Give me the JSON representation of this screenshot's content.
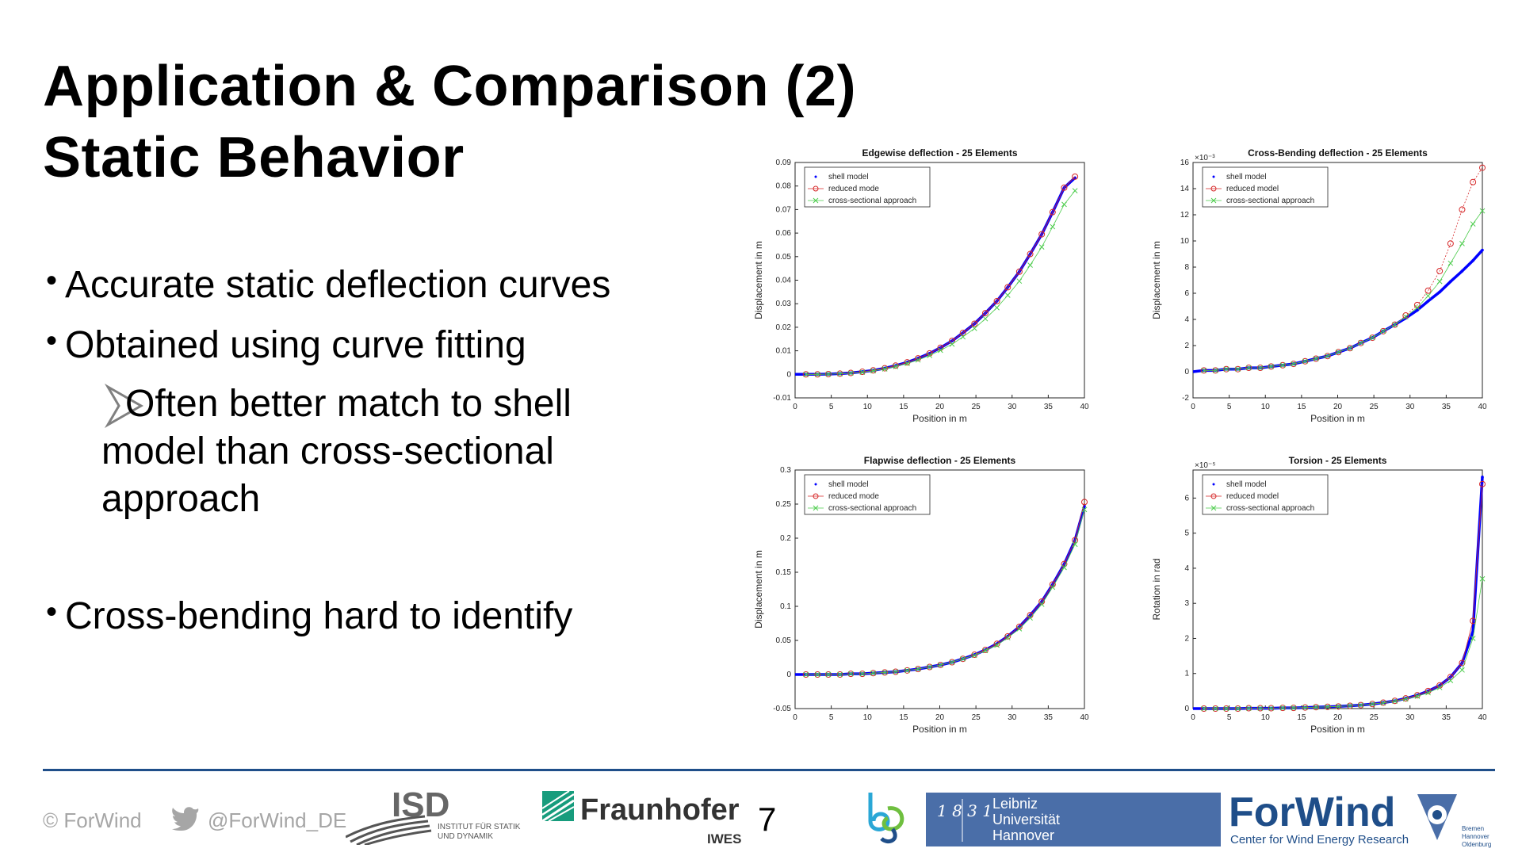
{
  "slide": {
    "title_line1": "Application & Comparison (2)",
    "title_line2": "Static Behavior",
    "bullet1": "Accurate static deflection curves",
    "bullet2": "Obtained using curve fitting",
    "sub_line1": "Often better match to shell",
    "sub_line2": "model than cross-sectional",
    "sub_line3": "approach",
    "bullet3": "Cross-bending hard to identify",
    "page_number": "7"
  },
  "footer": {
    "copyright": "© ForWind",
    "twitter": "@ForWind_DE",
    "isd_name": "ISD",
    "isd_sub1": "INSTITUT FÜR STATIK",
    "isd_sub2": "UND DYNAMIK",
    "fraunhofer": "Fraunhofer",
    "iwes": "IWES",
    "luh_digits": "1 8 3 1 2 0 0 4",
    "luh_line1": "Leibniz",
    "luh_line2": "Universität",
    "luh_line3": "Hannover",
    "forwind_name": "ForWind",
    "forwind_tagline": "Center for Wind Energy Research",
    "forwind_cities": [
      "Bremen",
      "Hannover",
      "Oldenburg"
    ]
  },
  "colors": {
    "shell": "#0000ff",
    "reduced": "#d62728",
    "cross": "#4dcc4d",
    "footer_line": "#1f4e89",
    "luh_blue": "#4a6ea8",
    "forwind_blue": "#1f4e89"
  },
  "legend": [
    "shell model",
    "reduced mode",
    "cross-sectional approach"
  ],
  "chart_data": [
    {
      "type": "line",
      "title": "Edgewise deflection - 25 Elements",
      "xlabel": "Position in m",
      "ylabel": "Displacement in m",
      "xlim": [
        0,
        40
      ],
      "ylim": [
        -0.01,
        0.09
      ],
      "xticks": [
        0,
        5,
        10,
        15,
        20,
        25,
        30,
        35,
        40
      ],
      "yticks": [
        -0.01,
        0,
        0.01,
        0.02,
        0.03,
        0.04,
        0.05,
        0.06,
        0.07,
        0.08,
        0.09
      ],
      "ytick_labels": [
        "-0.01",
        "0",
        "0.01",
        "0.02",
        "0.03",
        "0.04",
        "0.05",
        "0.06",
        "0.07",
        "0.08",
        "0.09"
      ],
      "legend_position": "top-left",
      "legend": [
        "shell model",
        "reduced mode",
        "cross-sectional approach"
      ],
      "x": [
        1.5,
        3.1,
        4.6,
        6.2,
        7.7,
        9.3,
        10.8,
        12.4,
        13.9,
        15.5,
        17.0,
        18.6,
        20.1,
        21.7,
        23.2,
        24.8,
        26.3,
        27.9,
        29.4,
        31.0,
        32.5,
        34.1,
        35.6,
        37.2,
        38.7
      ],
      "series": [
        {
          "name": "shell model",
          "values": [
            0.0,
            0.0,
            0.0001,
            0.0003,
            0.0006,
            0.0011,
            0.0017,
            0.0026,
            0.0037,
            0.0051,
            0.0068,
            0.0089,
            0.0113,
            0.0142,
            0.0176,
            0.0215,
            0.026,
            0.0311,
            0.037,
            0.0436,
            0.0511,
            0.0595,
            0.0689,
            0.0793,
            0.0835
          ]
        },
        {
          "name": "reduced mode",
          "values": [
            0.0,
            0.0,
            0.0001,
            0.0003,
            0.0006,
            0.0011,
            0.0017,
            0.0026,
            0.0037,
            0.0051,
            0.0068,
            0.0089,
            0.0113,
            0.0142,
            0.0176,
            0.0215,
            0.026,
            0.0311,
            0.037,
            0.0436,
            0.0511,
            0.0595,
            0.0689,
            0.0793,
            0.084
          ]
        },
        {
          "name": "cross-sectional approach",
          "values": [
            0.0,
            0.0,
            0.0001,
            0.0002,
            0.0005,
            0.0009,
            0.0015,
            0.0023,
            0.0033,
            0.0046,
            0.0061,
            0.008,
            0.0102,
            0.0128,
            0.0159,
            0.0195,
            0.0236,
            0.0283,
            0.0336,
            0.0396,
            0.0464,
            0.0541,
            0.0627,
            0.0722,
            0.078
          ]
        }
      ]
    },
    {
      "type": "line",
      "title": "Cross-Bending deflection - 25 Elements",
      "xlabel": "Position in m",
      "ylabel": "Displacement in m",
      "exponent_label": "×10⁻³",
      "xlim": [
        0,
        40
      ],
      "ylim": [
        -2,
        16
      ],
      "xticks": [
        0,
        5,
        10,
        15,
        20,
        25,
        30,
        35,
        40
      ],
      "yticks": [
        -2,
        0,
        2,
        4,
        6,
        8,
        10,
        12,
        14,
        16
      ],
      "ytick_labels": [
        "-2",
        "0",
        "2",
        "4",
        "6",
        "8",
        "10",
        "12",
        "14",
        "16"
      ],
      "legend_position": "top-left",
      "legend": [
        "shell model",
        "reduced model",
        "cross-sectional approach"
      ],
      "x": [
        1.5,
        3.1,
        4.6,
        6.2,
        7.7,
        9.3,
        10.8,
        12.4,
        13.9,
        15.5,
        17.0,
        18.6,
        20.1,
        21.7,
        23.2,
        24.8,
        26.3,
        27.9,
        29.4,
        31.0,
        32.5,
        34.1,
        35.6,
        37.2,
        38.7,
        40.0
      ],
      "series": [
        {
          "name": "shell model",
          "values": [
            0.1,
            0.1,
            0.2,
            0.2,
            0.3,
            0.3,
            0.4,
            0.5,
            0.6,
            0.8,
            1.0,
            1.2,
            1.5,
            1.8,
            2.2,
            2.6,
            3.1,
            3.6,
            4.1,
            4.7,
            5.4,
            6.1,
            6.9,
            7.7,
            8.5,
            9.3
          ]
        },
        {
          "name": "reduced model",
          "values": [
            0.1,
            0.1,
            0.2,
            0.2,
            0.3,
            0.3,
            0.4,
            0.5,
            0.6,
            0.8,
            1.0,
            1.2,
            1.5,
            1.8,
            2.2,
            2.6,
            3.1,
            3.6,
            4.3,
            5.1,
            6.2,
            7.7,
            9.8,
            12.4,
            14.5,
            15.6
          ]
        },
        {
          "name": "cross-sectional approach",
          "values": [
            0.1,
            0.1,
            0.2,
            0.2,
            0.3,
            0.3,
            0.4,
            0.5,
            0.6,
            0.8,
            1.0,
            1.2,
            1.5,
            1.8,
            2.2,
            2.6,
            3.1,
            3.6,
            4.2,
            4.9,
            5.8,
            6.9,
            8.3,
            9.8,
            11.3,
            12.3
          ]
        }
      ]
    },
    {
      "type": "line",
      "title": "Flapwise deflection - 25 Elements",
      "xlabel": "Position in m",
      "ylabel": "Displacement in m",
      "xlim": [
        0,
        40
      ],
      "ylim": [
        -0.05,
        0.3
      ],
      "xticks": [
        0,
        5,
        10,
        15,
        20,
        25,
        30,
        35,
        40
      ],
      "yticks": [
        -0.05,
        0,
        0.05,
        0.1,
        0.15,
        0.2,
        0.25,
        0.3
      ],
      "ytick_labels": [
        "-0.05",
        "0",
        "0.05",
        "0.1",
        "0.15",
        "0.2",
        "0.25",
        "0.3"
      ],
      "legend_position": "top-left",
      "legend": [
        "shell model",
        "reduced mode",
        "cross-sectional approach"
      ],
      "x": [
        1.5,
        3.1,
        4.6,
        6.2,
        7.7,
        9.3,
        10.8,
        12.4,
        13.9,
        15.5,
        17.0,
        18.6,
        20.1,
        21.7,
        23.2,
        24.8,
        26.3,
        27.9,
        29.4,
        31.0,
        32.5,
        34.1,
        35.6,
        37.2,
        38.7,
        40.0
      ],
      "series": [
        {
          "name": "shell model",
          "values": [
            0.0,
            0.0,
            0.0,
            0.0,
            0.001,
            0.001,
            0.002,
            0.003,
            0.004,
            0.006,
            0.008,
            0.011,
            0.014,
            0.018,
            0.023,
            0.029,
            0.036,
            0.045,
            0.056,
            0.07,
            0.087,
            0.107,
            0.132,
            0.162,
            0.197,
            0.247
          ]
        },
        {
          "name": "reduced mode",
          "values": [
            0.0,
            0.0,
            0.0,
            0.0,
            0.001,
            0.001,
            0.002,
            0.003,
            0.004,
            0.006,
            0.008,
            0.011,
            0.014,
            0.018,
            0.023,
            0.029,
            0.036,
            0.045,
            0.056,
            0.07,
            0.087,
            0.107,
            0.132,
            0.162,
            0.197,
            0.253
          ]
        },
        {
          "name": "cross-sectional approach",
          "values": [
            0.0,
            0.0,
            0.0,
            0.0,
            0.001,
            0.001,
            0.002,
            0.003,
            0.004,
            0.006,
            0.008,
            0.011,
            0.014,
            0.018,
            0.023,
            0.028,
            0.035,
            0.043,
            0.054,
            0.067,
            0.083,
            0.103,
            0.128,
            0.157,
            0.191,
            0.242
          ]
        }
      ]
    },
    {
      "type": "line",
      "title": "Torsion - 25 Elements",
      "xlabel": "Position in m",
      "ylabel": "Rotation in rad",
      "exponent_label": "×10⁻⁵",
      "xlim": [
        0,
        40
      ],
      "ylim": [
        0,
        6.8
      ],
      "xticks": [
        0,
        5,
        10,
        15,
        20,
        25,
        30,
        35,
        40
      ],
      "yticks": [
        0,
        1,
        2,
        3,
        4,
        5,
        6
      ],
      "ytick_labels": [
        "0",
        "1",
        "2",
        "3",
        "4",
        "5",
        "6"
      ],
      "legend_position": "top-left",
      "legend": [
        "shell model",
        "reduced model",
        "cross-sectional approach"
      ],
      "x": [
        1.5,
        3.1,
        4.6,
        6.2,
        7.7,
        9.3,
        10.8,
        12.4,
        13.9,
        15.5,
        17.0,
        18.6,
        20.1,
        21.7,
        23.2,
        24.8,
        26.3,
        27.9,
        29.4,
        31.0,
        32.5,
        34.1,
        35.6,
        37.2,
        38.7,
        40.0
      ],
      "series": [
        {
          "name": "shell model",
          "values": [
            0.0,
            0.0,
            0.0,
            0.0,
            0.01,
            0.01,
            0.01,
            0.02,
            0.02,
            0.03,
            0.04,
            0.05,
            0.06,
            0.08,
            0.1,
            0.13,
            0.17,
            0.22,
            0.29,
            0.38,
            0.5,
            0.66,
            0.9,
            1.3,
            2.2,
            6.6
          ]
        },
        {
          "name": "reduced model",
          "values": [
            0.0,
            0.0,
            0.0,
            0.0,
            0.01,
            0.01,
            0.01,
            0.02,
            0.02,
            0.03,
            0.04,
            0.05,
            0.06,
            0.08,
            0.1,
            0.13,
            0.17,
            0.22,
            0.29,
            0.38,
            0.5,
            0.66,
            0.9,
            1.3,
            2.5,
            6.4
          ]
        },
        {
          "name": "cross-sectional approach",
          "values": [
            0.0,
            0.0,
            0.0,
            0.0,
            0.01,
            0.01,
            0.01,
            0.02,
            0.02,
            0.03,
            0.04,
            0.05,
            0.06,
            0.08,
            0.1,
            0.13,
            0.16,
            0.21,
            0.27,
            0.35,
            0.45,
            0.6,
            0.8,
            1.1,
            2.0,
            3.7
          ]
        }
      ]
    }
  ]
}
